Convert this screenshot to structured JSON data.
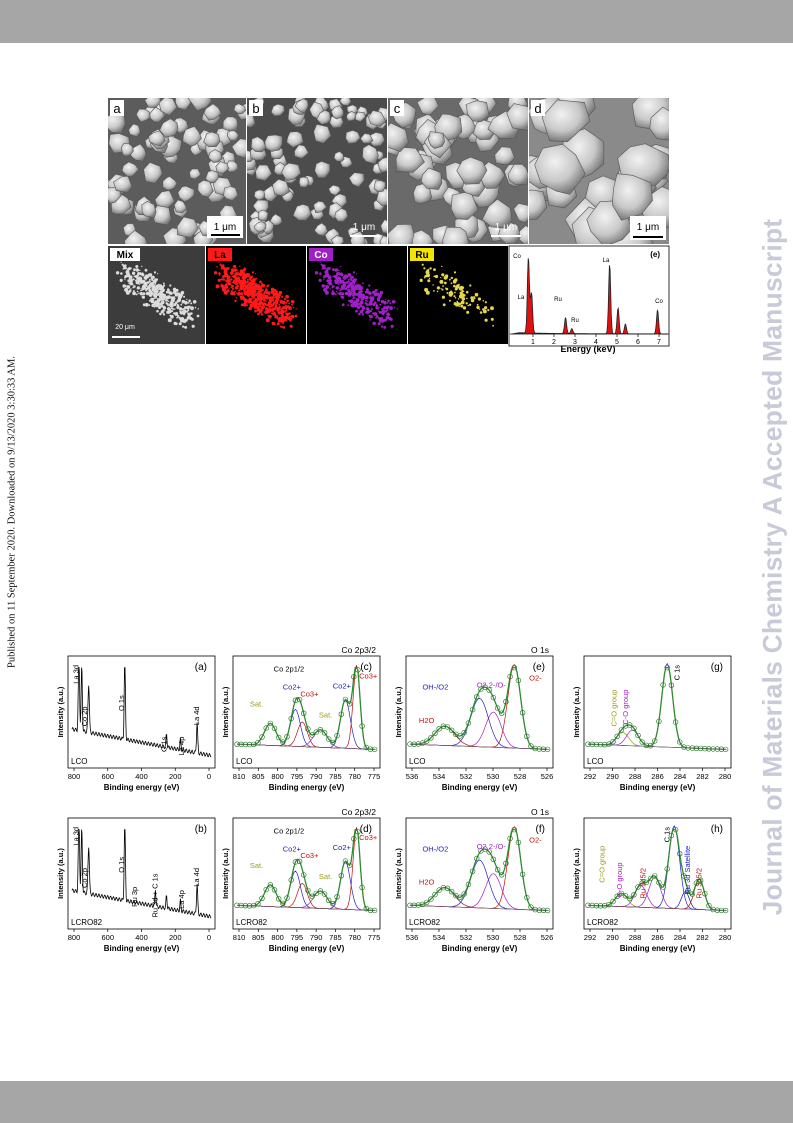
{
  "header_band": "",
  "journal_watermark": "Journal of Materials Chemistry A Accepted Manuscript",
  "publication_note": "Published on 11 September 2020. Downloaded on 9/13/2020 3:30:33 AM.",
  "sem": {
    "panels": [
      {
        "label": "a",
        "scale": "1 μm"
      },
      {
        "label": "b",
        "scale": "1 μm"
      },
      {
        "label": "c",
        "scale": "1 μm"
      },
      {
        "label": "d",
        "scale": "1 μm"
      }
    ]
  },
  "eds_maps": [
    {
      "label": "Mix",
      "scale": "20 μm",
      "color": "#dcdcdc"
    },
    {
      "label": "La",
      "color": "#ff1a1a"
    },
    {
      "label": "Co",
      "color": "#a020c8"
    },
    {
      "label": "Ru",
      "color": "#e6d84a"
    }
  ],
  "eds_spectrum": {
    "panel": "(e)",
    "xlabel": "Energy (keV)",
    "ticks": [
      "1",
      "2",
      "3",
      "4",
      "5",
      "6",
      "7"
    ],
    "peaks": [
      "Co",
      "La",
      "Ru",
      "Ru",
      "La",
      "Co"
    ]
  },
  "xps": {
    "panels": [
      {
        "label": "(a)",
        "sample": "LCO",
        "xlabel": "Binding energy (eV)",
        "ylabel": "Intensity (a.u.)",
        "ticks": [
          "800",
          "600",
          "400",
          "200",
          "0"
        ],
        "peaks": [
          "La 3d",
          "Co 2p",
          "O 1s",
          "C 1s",
          "La 4p",
          "La 4d"
        ]
      },
      {
        "label": "(b)",
        "sample": "LCRO82",
        "xlabel": "Binding energy (eV)",
        "ylabel": "Intensity (a.u.)",
        "ticks": [
          "800",
          "600",
          "400",
          "200",
          "0"
        ],
        "peaks": [
          "La 3d",
          "Co 2p",
          "O 1s",
          "Ru 3p",
          "Ru 3d + C 1s",
          "La 4p",
          "La 4d"
        ]
      },
      {
        "label": "(c)",
        "sample": "LCO",
        "xlabel": "Binding energy (eV)",
        "ylabel": "Intensity (a.u.)",
        "ticks": [
          "810",
          "805",
          "800",
          "795",
          "790",
          "785",
          "780",
          "775"
        ],
        "title": "Co 2p3/2",
        "peaks": [
          "Co 2p1/2",
          "Sat.",
          "Co2+",
          "Co3+",
          "Sat.",
          "Co2+",
          "Co3+"
        ]
      },
      {
        "label": "(d)",
        "sample": "LCRO82",
        "xlabel": "Binding energy (eV)",
        "ylabel": "Intensity (a.u.)",
        "ticks": [
          "810",
          "805",
          "800",
          "795",
          "790",
          "785",
          "780",
          "775"
        ],
        "title": "Co 2p3/2",
        "peaks": [
          "Co 2p1/2",
          "Sat.",
          "Co2+",
          "Co3+",
          "Sat.",
          "Co2+",
          "Co3+"
        ]
      },
      {
        "label": "(e)",
        "sample": "LCO",
        "xlabel": "Binding energy (eV)",
        "ylabel": "Intensity (a.u.)",
        "ticks": [
          "536",
          "534",
          "532",
          "530",
          "528",
          "526"
        ],
        "title": "O 1s",
        "peaks": [
          "OH-/O2",
          "O2 2-/O-",
          "O2-",
          "H2O"
        ]
      },
      {
        "label": "(f)",
        "sample": "LCRO82",
        "xlabel": "Binding energy (eV)",
        "ylabel": "Intensity (a.u.)",
        "ticks": [
          "536",
          "534",
          "532",
          "530",
          "528",
          "526"
        ],
        "title": "O 1s",
        "peaks": [
          "OH-/O2",
          "O2 2-/O-",
          "O2-",
          "H2O"
        ]
      },
      {
        "label": "(g)",
        "sample": "LCO",
        "xlabel": "Binding energy (eV)",
        "ylabel": "Intensity (a.u.)",
        "ticks": [
          "292",
          "290",
          "288",
          "286",
          "284",
          "282",
          "280"
        ],
        "peaks": [
          "C=O group",
          "C-O group",
          "C 1s"
        ]
      },
      {
        "label": "(h)",
        "sample": "LCRO82",
        "xlabel": "Binding energy (eV)",
        "ylabel": "Intensity (a.u.)",
        "ticks": [
          "292",
          "290",
          "288",
          "286",
          "284",
          "282",
          "280"
        ],
        "peaks": [
          "C=O group",
          "C-O group",
          "Ru 3d5/2",
          "C 1s",
          "Ru 3d Satellite",
          "Ru 3d5/2"
        ]
      }
    ]
  },
  "colors": {
    "band": "#a6a6a6",
    "watermark": "#c9cad9",
    "fit_green": "#2e8b2e",
    "sem_bg": "#5c5c5c"
  }
}
